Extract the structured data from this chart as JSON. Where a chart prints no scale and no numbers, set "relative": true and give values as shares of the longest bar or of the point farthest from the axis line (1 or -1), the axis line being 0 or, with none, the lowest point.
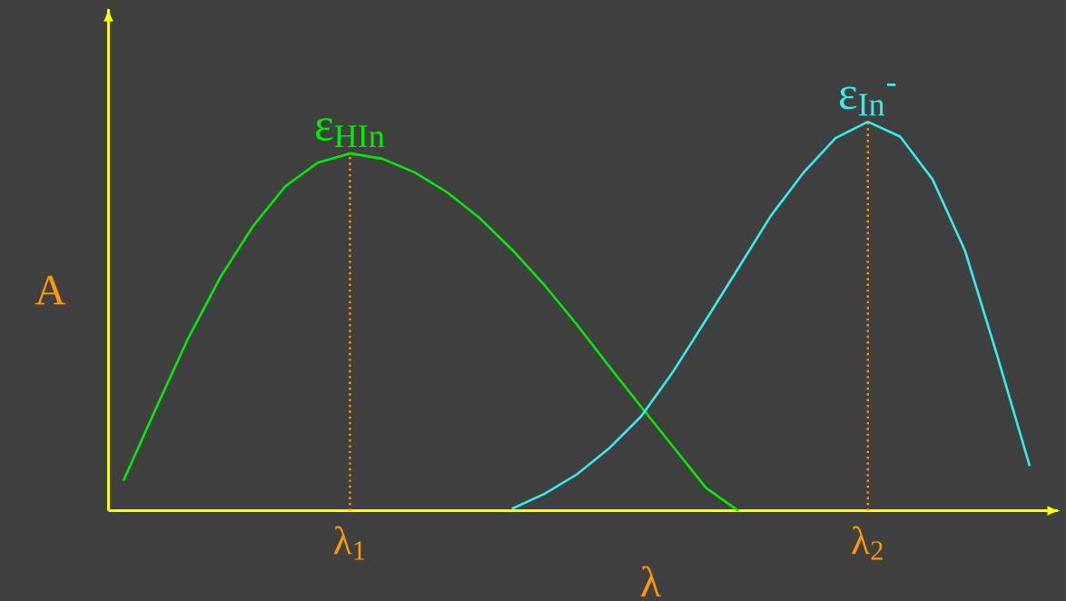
{
  "chart_data": {
    "type": "line",
    "relative": true,
    "xlabel": "λ",
    "ylabel": "A",
    "categories": [
      null,
      null,
      null,
      null,
      null,
      null,
      null,
      null,
      null,
      null,
      null,
      null,
      null,
      null,
      null,
      null,
      null,
      null,
      null,
      null,
      null,
      null,
      null,
      null,
      null,
      null,
      null,
      null,
      null
    ],
    "annotations": [
      "λ$_{1}$",
      "λ$_{2}$"
    ],
    "legend": false,
    "marker": "none",
    "series": [
      {
        "name": "ε$_{HIn}$",
        "color": "#00ee00",
        "line_style": "solid",
        "values": [
          0.077,
          0.262,
          0.443,
          0.601,
          0.731,
          0.834,
          0.895,
          0.919,
          0.905,
          0.87,
          0.819,
          0.753,
          0.672,
          0.581,
          0.48,
          0.372,
          0.267,
          0.163,
          0.059,
          0,
          null,
          null,
          null,
          null,
          null,
          null,
          null,
          null,
          null
        ]
      },
      {
        "name": "ε$_{In}$$^{-}$",
        "color": "#33eeee",
        "line_style": "solid",
        "values": [
          null,
          null,
          null,
          null,
          null,
          null,
          null,
          null,
          null,
          null,
          null,
          null,
          0.005,
          0.043,
          0.093,
          0.16,
          0.243,
          0.36,
          0.491,
          0.624,
          0.758,
          0.868,
          0.958,
          1.0,
          0.962,
          0.852,
          0.669,
          0.398,
          0.115
        ]
      }
    ]
  }
}
